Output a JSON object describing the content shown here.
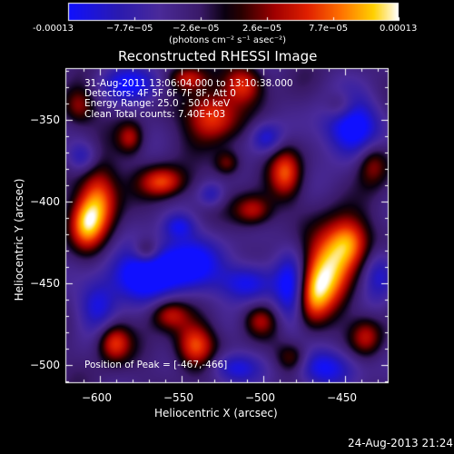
{
  "colorbar": {
    "colors": [
      "#0000ff",
      "#3a1aa0",
      "#5a2a9a",
      "#3a1a60",
      "#000000",
      "#6a0000",
      "#d01000",
      "#ff6a00",
      "#ffd000",
      "#ffffff"
    ],
    "tick_labels": [
      "-0.00013",
      "−7.7e−05",
      "−2.6e−05",
      "2.6e−05",
      "7.7e−05",
      "0.00013"
    ],
    "unit_label": "(photons cm⁻² s⁻¹ asec⁻²)"
  },
  "title": "Reconstructed RHESSI Image",
  "annotation": {
    "line1": "31-Aug-2011 13:06:04.000 to 13:10:38.000",
    "line2": "Detectors: 4F 5F 6F 7F 8F, Att 0",
    "line3": "Energy Range: 25.0 - 50.0 keV",
    "line4": "Clean    Total counts: 7.40E+03",
    "peak": "Position of Peak = [-467,-466]"
  },
  "axes": {
    "xlabel": "Heliocentric X (arcsec)",
    "ylabel": "Heliocentric Y (arcsec)",
    "xticks": [
      "−600",
      "−550",
      "−500",
      "−450"
    ],
    "yticks": [
      "−350",
      "−400",
      "−450",
      "−500"
    ],
    "xlim": [
      -615,
      -430
    ],
    "ylim": [
      -510,
      -325
    ]
  },
  "footer_timestamp": "24-Aug-2013 21:24"
}
